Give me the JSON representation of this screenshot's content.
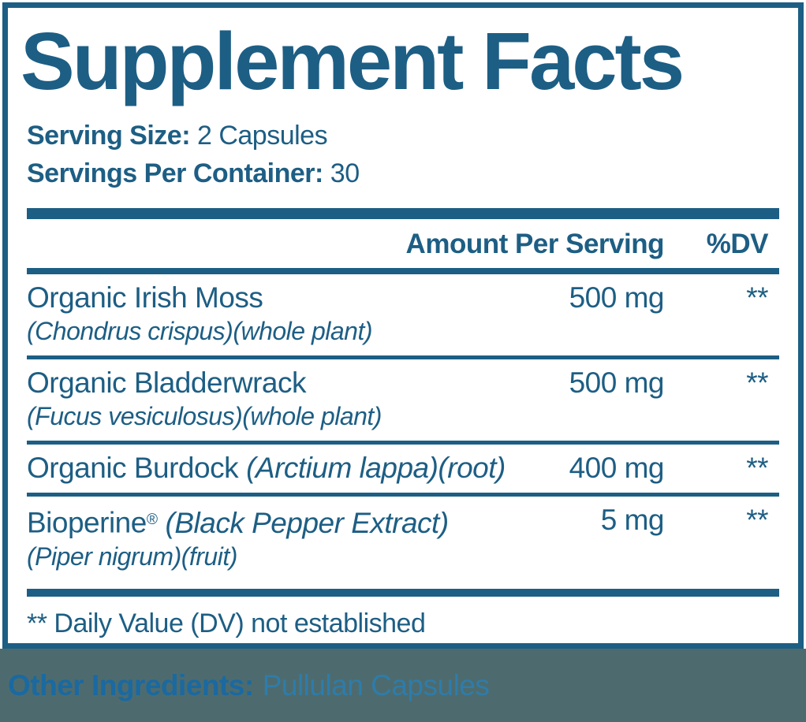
{
  "colors": {
    "primary_blue": "#1D5E84",
    "footer_label_blue": "#1A69A1",
    "footer_value_blue": "#2E7CAB",
    "footer_band_gray": "#4D6B6E",
    "background": "#FFFFFF"
  },
  "title": "Supplement Facts",
  "serving_info": {
    "serving_size_label": "Serving Size:",
    "serving_size_value": "2 Capsules",
    "servings_per_container_label": "Servings Per Container:",
    "servings_per_container_value": "30"
  },
  "table": {
    "headers": {
      "amount": "Amount Per Serving",
      "dv": "%DV"
    },
    "rows": [
      {
        "name": "Organic Irish Moss",
        "latin": "(Chondrus crispus)(whole plant)",
        "amount": "500 mg",
        "dv": "**"
      },
      {
        "name": "Organic Bladderwrack",
        "latin": "(Fucus vesiculosus)(whole plant)",
        "amount": "500 mg",
        "dv": "**"
      },
      {
        "name": "Organic Burdock",
        "name_detail": "(Arctium lappa)(root)",
        "amount": "400 mg",
        "dv": "**"
      },
      {
        "name": "Bioperine",
        "trademark": "®",
        "name_detail": "(Black Pepper Extract)",
        "latin": "(Piper nigrum)(fruit)",
        "amount": "5 mg",
        "dv": "**"
      }
    ],
    "footnote": "** Daily Value (DV) not established"
  },
  "other_ingredients": {
    "label": "Other Ingredients:",
    "value": "Pullulan Capsules"
  }
}
